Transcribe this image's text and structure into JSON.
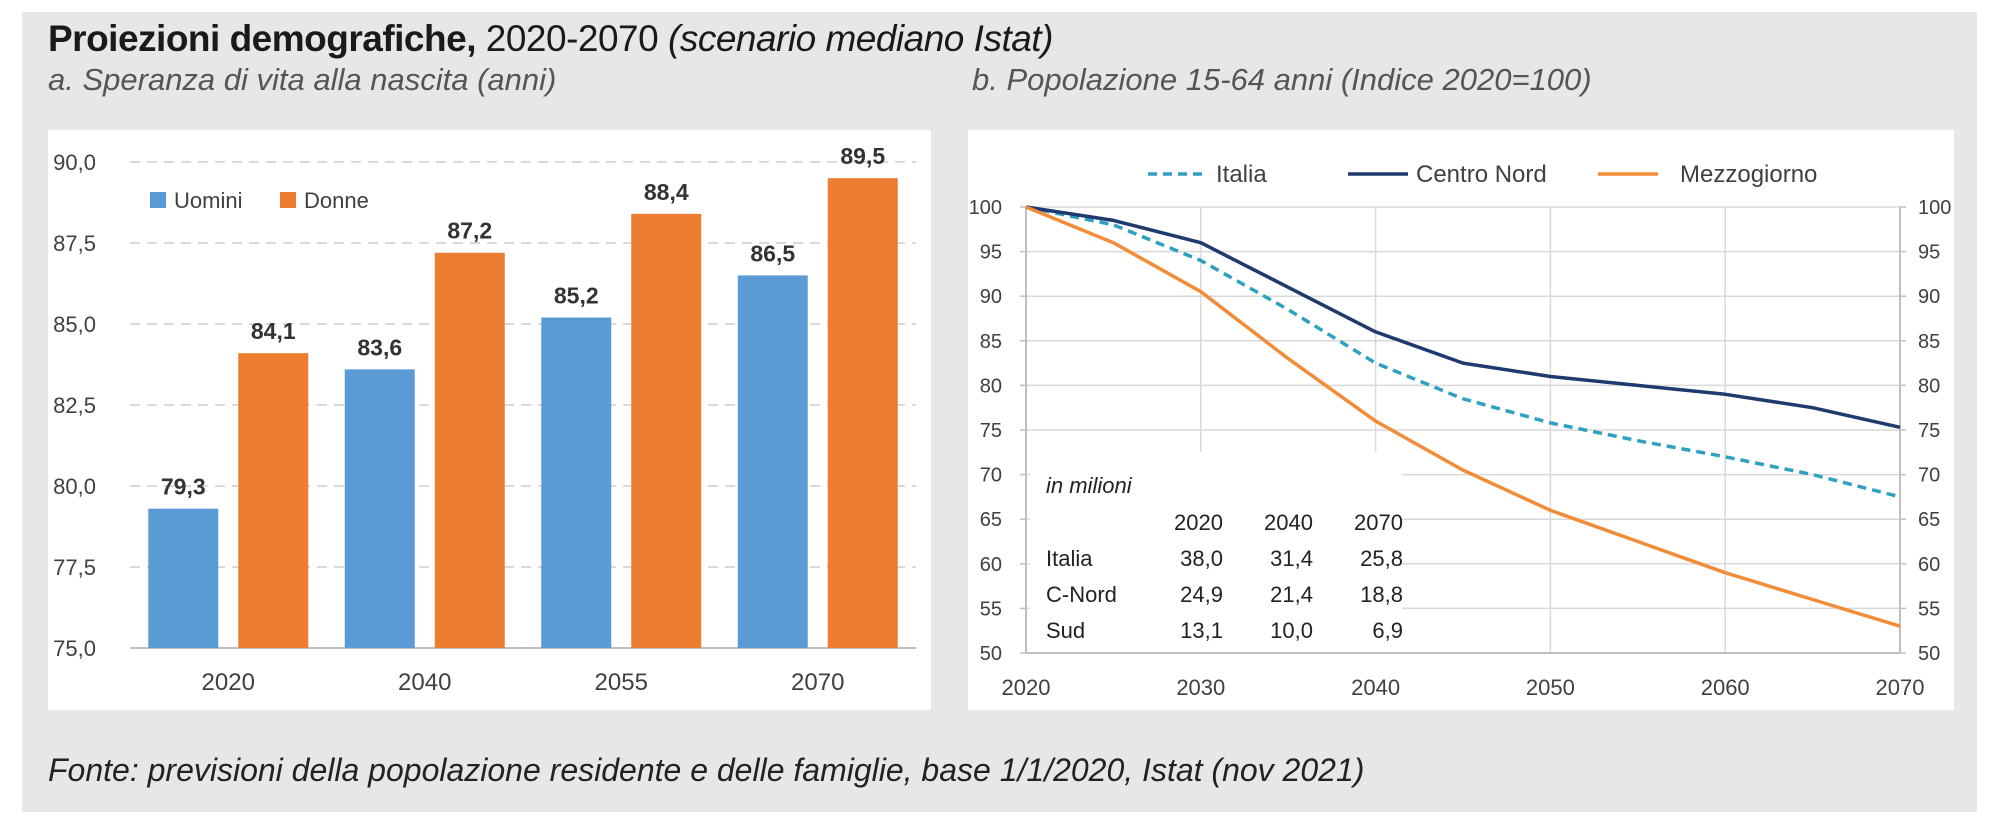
{
  "title": {
    "bold": "Proiezioni demografiche,",
    "normal": " 2020-2070 ",
    "italic": "(scenario mediano Istat)"
  },
  "source": "Fonte: previsioni della popolazione residente e delle famiglie, base 1/1/2020, Istat (nov 2021)",
  "colors": {
    "uomini": "#5b9bd5",
    "donne": "#ed7d31",
    "italia": "#2fa1c0",
    "centro_nord": "#1f3a6e",
    "mezzogiorno": "#f28c38"
  },
  "chart_data": [
    {
      "type": "bar",
      "subtitle": "a. Speranza di vita alla nascita (anni)",
      "categories": [
        "2020",
        "2040",
        "2055",
        "2070"
      ],
      "series": [
        {
          "name": "Uomini",
          "values": [
            79.3,
            83.6,
            85.2,
            86.5
          ],
          "labels": [
            "79,3",
            "83,6",
            "85,2",
            "86,5"
          ]
        },
        {
          "name": "Donne",
          "values": [
            84.1,
            87.2,
            88.4,
            89.5
          ],
          "labels": [
            "84,1",
            "87,2",
            "88,4",
            "89,5"
          ]
        }
      ],
      "ylim": [
        75,
        90
      ],
      "yticks": [
        75,
        77.5,
        80,
        82.5,
        85,
        87.5,
        90
      ],
      "ytick_labels": [
        "75,0",
        "77,5",
        "80,0",
        "82,5",
        "85,0",
        "87,5",
        "90,0"
      ],
      "grid": true,
      "legend": "top-left"
    },
    {
      "type": "line",
      "subtitle": "b. Popolazione 15-64 anni (Indice 2020=100)",
      "x": [
        2020,
        2025,
        2030,
        2035,
        2040,
        2045,
        2050,
        2055,
        2060,
        2065,
        2070
      ],
      "xlim": [
        2020,
        2070
      ],
      "xticks": [
        "2020",
        "2030",
        "2040",
        "2050",
        "2060",
        "2070"
      ],
      "ylim": [
        50,
        100
      ],
      "yticks": [
        "50",
        "55",
        "60",
        "65",
        "70",
        "75",
        "80",
        "85",
        "90",
        "95",
        "100"
      ],
      "grid": true,
      "legend": "top",
      "series": [
        {
          "name": "Italia",
          "style": "dashed",
          "values": [
            100,
            98,
            94,
            88.5,
            82.5,
            78.5,
            75.8,
            73.8,
            72,
            70,
            67.5
          ]
        },
        {
          "name": "Centro Nord",
          "style": "solid",
          "values": [
            100,
            98.5,
            96,
            91,
            86,
            82.5,
            81,
            80,
            79,
            77.5,
            75.3
          ]
        },
        {
          "name": "Mezzogiorno",
          "style": "solid",
          "values": [
            100,
            96,
            90.5,
            83,
            76,
            70.5,
            66,
            62.5,
            59,
            56,
            53
          ]
        }
      ],
      "table": {
        "caption": "in milioni",
        "columns": [
          "",
          "2020",
          "2040",
          "2070"
        ],
        "rows": [
          [
            "Italia",
            "38,0",
            "31,4",
            "25,8"
          ],
          [
            "C-Nord",
            "24,9",
            "21,4",
            "18,8"
          ],
          [
            "Sud",
            "13,1",
            "10,0",
            "6,9"
          ]
        ]
      }
    }
  ]
}
